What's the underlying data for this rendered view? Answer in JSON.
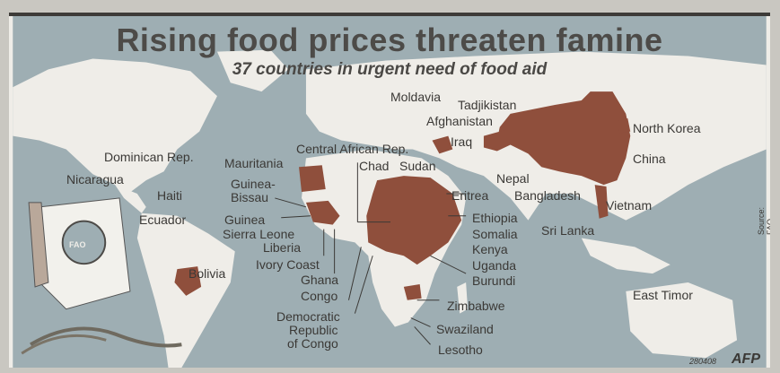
{
  "title": "Rising food prices threaten famine",
  "subtitle": "37 countries in urgent need of food aid",
  "logo_text": "FAO",
  "source": "Source: FAO",
  "credit_code": "280408",
  "agency": "AFP",
  "colors": {
    "affected": "#8f4f3c",
    "land": "#efede8",
    "sea": "#9eaeb3",
    "text": "#3b3936"
  },
  "countries": [
    "Moldavia",
    "Tadjikistan",
    "Afghanistan",
    "Iraq",
    "North Korea",
    "China",
    "Dominican Rep.",
    "Nicaragua",
    "Haiti",
    "Ecuador",
    "Bolivia",
    "Mauritania",
    "Central African Rep.",
    "Chad",
    "Sudan",
    "Guinea-",
    "Bissau",
    "Guinea",
    "Sierra Leone",
    "Liberia",
    "Ivory Coast",
    "Ghana",
    "Congo",
    "Democratic",
    "Republic",
    "of Congo",
    "Eritrea",
    "Ethiopia",
    "Somalia",
    "Kenya",
    "Uganda",
    "Burundi",
    "Zimbabwe",
    "Swaziland",
    "Lesotho",
    "Nepal",
    "Bangladesh",
    "Sri Lanka",
    "Vietnam",
    "East Timor"
  ]
}
